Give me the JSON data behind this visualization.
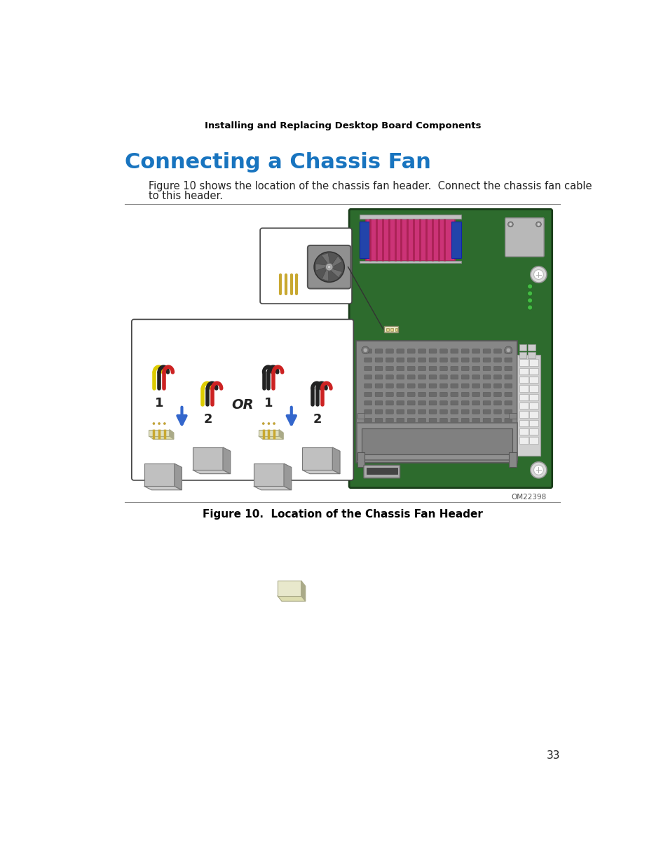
{
  "header_text": "Installing and Replacing Desktop Board Components",
  "title": "Connecting a Chassis Fan",
  "body_text_1": "Figure 10 shows the location of the chassis fan header.  Connect the chassis fan cable",
  "body_text_2": "to this header.",
  "figure_caption": "Figure 10.  Location of the Chassis Fan Header",
  "figure_id": "OM22398",
  "page_number": "33",
  "bg_color": "#ffffff",
  "title_color": "#1874bf",
  "header_color": "#000000",
  "body_color": "#222222",
  "caption_color": "#000000",
  "divider_color": "#888888",
  "board_green": "#2d6b2d",
  "board_edge": "#1a3d1a",
  "pink_fill": "#cc3377",
  "pink_stripe": "#aa2255",
  "blue_clip": "#2244aa",
  "vga_gray": "#b8b8b8",
  "led_green": "#44bb44",
  "screw_gray": "#d8d8d8",
  "slot_gray": "#878787",
  "slot_dark": "#555555",
  "ram_gray": "#909090",
  "power_white": "#dddddd",
  "wire_yellow": "#ddcc00",
  "wire_black": "#222222",
  "wire_red": "#cc2222",
  "connector_gray": "#aaaaaa",
  "connector_dark": "#888888",
  "connector_side": "#888888",
  "pin_gold": "#c8a830",
  "arrow_blue": "#3366cc",
  "inset_edge": "#444444",
  "fanheader_cream": "#ddddb0",
  "fanheader_side": "#aaaa88"
}
